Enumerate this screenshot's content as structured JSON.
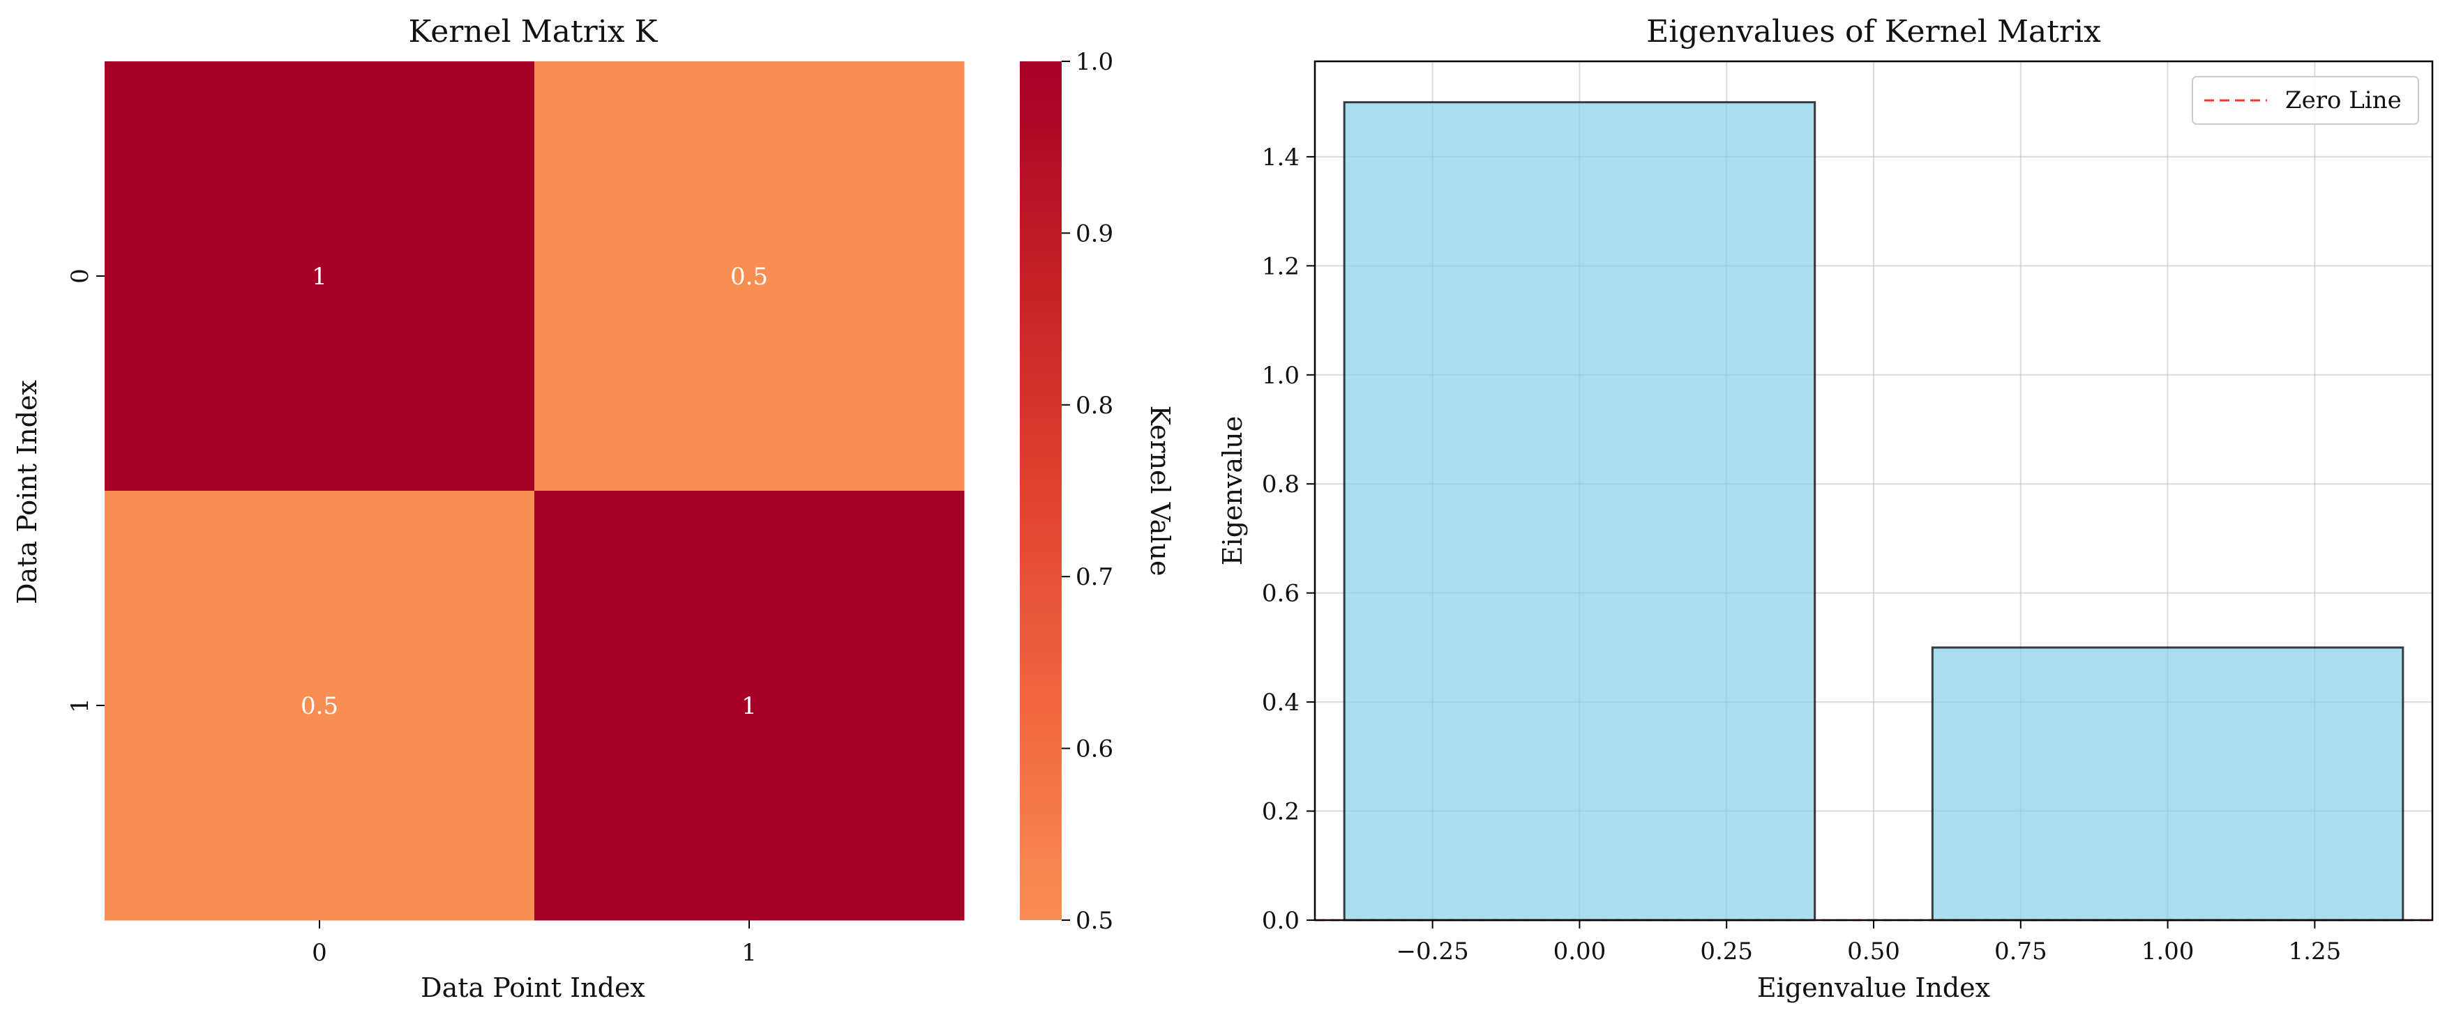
{
  "chart_data": [
    {
      "type": "heatmap",
      "title": "Kernel Matrix K",
      "xlabel": "Data Point Index",
      "ylabel": "Data Point Index",
      "x_categories": [
        "0",
        "1"
      ],
      "y_categories": [
        "0",
        "1"
      ],
      "values": [
        [
          1,
          0.5
        ],
        [
          0.5,
          1
        ]
      ],
      "cell_labels": [
        [
          "1",
          "0.5"
        ],
        [
          "0.5",
          "1"
        ]
      ],
      "colorbar": {
        "label": "Kernel Value",
        "range": [
          0.5,
          1.0
        ],
        "ticks": [
          "0.5",
          "0.6",
          "0.7",
          "0.8",
          "0.9",
          "1.0"
        ],
        "colormap": [
          "#f98e52",
          "#f16640",
          "#e0422f",
          "#c42025",
          "#a50026"
        ]
      }
    },
    {
      "type": "bar",
      "title": "Eigenvalues of Kernel Matrix",
      "xlabel": "Eigenvalue Index",
      "ylabel": "Eigenvalue",
      "x": [
        0,
        1
      ],
      "values": [
        1.5,
        0.5
      ],
      "bar_width": 0.8,
      "xlim": [
        -0.45,
        1.45
      ],
      "ylim": [
        0,
        1.575
      ],
      "xticks": [
        "−0.25",
        "0.00",
        "0.25",
        "0.50",
        "0.75",
        "1.00",
        "1.25"
      ],
      "yticks": [
        "0.0",
        "0.2",
        "0.4",
        "0.6",
        "0.8",
        "1.0",
        "1.2",
        "1.4"
      ],
      "grid": true,
      "bar_color": "#87ceeb",
      "zero_line": 0,
      "legend": {
        "position": "top-right",
        "entries": [
          "Zero Line"
        ]
      }
    }
  ]
}
